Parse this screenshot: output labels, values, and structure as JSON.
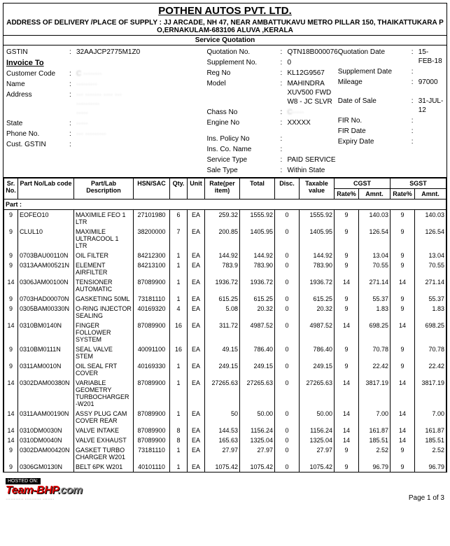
{
  "company": "POTHEN AUTOS PVT. LTD.",
  "delivery_address": "ADDRESS OF DELIVERY /PLACE OF SUPPLY  : JJ ARCADE, NH 47, NEAR AMBATTUKAVU METRO PILLAR 150, THAIKATTUKARA P O,ERNAKULAM-683106 ALUVA ,KERALA",
  "section_title": "Service Quotation",
  "left": {
    "gstin_label": "GSTIN",
    "gstin": "32AAJCP2775M1Z0",
    "invoice_to": "Invoice To",
    "cust_code_label": "Customer Code",
    "cust_code": "C ········",
    "name_label": "Name",
    "name": "·········",
    "address_label": "Address",
    "address": "··· ······· ···· ···\n··········\n·····",
    "state_label": "State",
    "state": "·····",
    "phone_label": "Phone No.",
    "phone": "··· ·········",
    "cust_gstin_label": "Cust. GSTIN"
  },
  "mid": {
    "quotation_no_label": "Quotation No.",
    "quotation_no": "QTN18B000076",
    "supp_no_label": "Supplement No.",
    "supp_no": "0",
    "reg_no_label": "Reg No",
    "reg_no": "KL12G9567",
    "model_label": "Model",
    "model": "MAHINDRA XUV500 FWD W8 - JC SLVR",
    "chass_no_label": "Chass No",
    "chass_no": "C·····",
    "engine_no_label": "Engine No",
    "engine_no": "XXXXX",
    "ins_policy_label": "Ins. Policy No",
    "ins_co_label": "Ins. Co. Name",
    "service_type_label": "Service Type",
    "service_type": "PAID SERVICE",
    "sale_type_label": "Sale Type",
    "sale_type": "Within State"
  },
  "right": {
    "quotation_date_label": "Quotation Date",
    "quotation_date": "15-FEB-18",
    "supp_date_label": "Supplement Date",
    "supp_date": "",
    "mileage_label": "Mileage",
    "mileage": "97000",
    "date_of_sale_label": "Date of Sale",
    "date_of_sale": "31-JUL-12",
    "fir_no_label": "FIR No.",
    "fir_date_label": "FIR Date",
    "expiry_date_label": "Expiry Date"
  },
  "columns": {
    "sr": "Sr. No.",
    "code": "Part No/Lab code",
    "desc": "Part/Lab Description",
    "hsn": "HSN/SAC",
    "qty": "Qty.",
    "unit": "Unit",
    "rate": "Rate(per item)",
    "total": "Total",
    "disc": "Disc.",
    "taxable": "Taxable value",
    "cgst": "CGST",
    "sgst": "SGST",
    "rate_pct": "Rate%",
    "amnt": "Amnt."
  },
  "part_label": "Part :",
  "rows": [
    {
      "sr": "9",
      "code": "EOFEO10",
      "desc": "MAXIMILE FEO 1 LTR",
      "hsn": "27101980",
      "qty": "6",
      "unit": "EA",
      "rate": "259.32",
      "total": "1555.92",
      "disc": "0",
      "taxable": "1555.92",
      "cr": "9",
      "ca": "140.03",
      "sa": "140.03"
    },
    {
      "sr": "9",
      "code": "CLUL10",
      "desc": "MAXIMILE ULTRACOOL  1 LTR",
      "hsn": "38200000",
      "qty": "7",
      "unit": "EA",
      "rate": "200.85",
      "total": "1405.95",
      "disc": "0",
      "taxable": "1405.95",
      "cr": "9",
      "ca": "126.54",
      "sa": "126.54"
    },
    {
      "sr": "9",
      "code": "0703BAU00110N",
      "desc": "OIL FILTER",
      "hsn": "84212300",
      "qty": "1",
      "unit": "EA",
      "rate": "144.92",
      "total": "144.92",
      "disc": "0",
      "taxable": "144.92",
      "cr": "9",
      "ca": "13.04",
      "sa": "13.04"
    },
    {
      "sr": "9",
      "code": "0313AAM00521N",
      "desc": "ELEMENT AIRFILTER",
      "hsn": "84213100",
      "qty": "1",
      "unit": "EA",
      "rate": "783.9",
      "total": "783.90",
      "disc": "0",
      "taxable": "783.90",
      "cr": "9",
      "ca": "70.55",
      "sa": "70.55"
    },
    {
      "sr": "14",
      "code": "0306JAM00100N",
      "desc": "TENSIONER AUTOMATIC",
      "hsn": "87089900",
      "qty": "1",
      "unit": "EA",
      "rate": "1936.72",
      "total": "1936.72",
      "disc": "0",
      "taxable": "1936.72",
      "cr": "14",
      "ca": "271.14",
      "sa": "271.14"
    },
    {
      "sr": "9",
      "code": "0703HAD00070N",
      "desc": "GASKETING 50ML",
      "hsn": "73181110",
      "qty": "1",
      "unit": "EA",
      "rate": "615.25",
      "total": "615.25",
      "disc": "0",
      "taxable": "615.25",
      "cr": "9",
      "ca": "55.37",
      "sa": "55.37"
    },
    {
      "sr": "9",
      "code": "0305BAM00330N",
      "desc": "O-RING INJECTOR SEALING",
      "hsn": "40169320",
      "qty": "4",
      "unit": "EA",
      "rate": "5.08",
      "total": "20.32",
      "disc": "0",
      "taxable": "20.32",
      "cr": "9",
      "ca": "1.83",
      "sa": "1.83"
    },
    {
      "sr": "14",
      "code": "0310BM0140N",
      "desc": "FINGER FOLLOWER SYSTEM",
      "hsn": "87089900",
      "qty": "16",
      "unit": "EA",
      "rate": "311.72",
      "total": "4987.52",
      "disc": "0",
      "taxable": "4987.52",
      "cr": "14",
      "ca": "698.25",
      "sa": "698.25"
    },
    {
      "sr": "9",
      "code": "0310BM0111N",
      "desc": "SEAL VALVE STEM",
      "hsn": "40091100",
      "qty": "16",
      "unit": "EA",
      "rate": "49.15",
      "total": "786.40",
      "disc": "0",
      "taxable": "786.40",
      "cr": "9",
      "ca": "70.78",
      "sa": "70.78"
    },
    {
      "sr": "9",
      "code": "0311AM0010N",
      "desc": "OIL SEAL FRT COVER",
      "hsn": "40169330",
      "qty": "1",
      "unit": "EA",
      "rate": "249.15",
      "total": "249.15",
      "disc": "0",
      "taxable": "249.15",
      "cr": "9",
      "ca": "22.42",
      "sa": "22.42"
    },
    {
      "sr": "14",
      "code": "0302DAM00380N",
      "desc": "VARIABLE GEOMETRY TURBOCHARGER -W201",
      "hsn": "87089900",
      "qty": "1",
      "unit": "EA",
      "rate": "27265.63",
      "total": "27265.63",
      "disc": "0",
      "taxable": "27265.63",
      "cr": "14",
      "ca": "3817.19",
      "sa": "3817.19"
    },
    {
      "sr": "14",
      "code": "0311AAM00190N",
      "desc": "ASSY PLUG CAM COVER REAR",
      "hsn": "87089900",
      "qty": "1",
      "unit": "EA",
      "rate": "50",
      "total": "50.00",
      "disc": "0",
      "taxable": "50.00",
      "cr": "14",
      "ca": "7.00",
      "sa": "7.00"
    },
    {
      "sr": "14",
      "code": "0310DM0030N",
      "desc": "VALVE INTAKE",
      "hsn": "87089900",
      "qty": "8",
      "unit": "EA",
      "rate": "144.53",
      "total": "1156.24",
      "disc": "0",
      "taxable": "1156.24",
      "cr": "14",
      "ca": "161.87",
      "sa": "161.87"
    },
    {
      "sr": "14",
      "code": "0310DM0040N",
      "desc": "VALVE EXHAUST",
      "hsn": "87089900",
      "qty": "8",
      "unit": "EA",
      "rate": "165.63",
      "total": "1325.04",
      "disc": "0",
      "taxable": "1325.04",
      "cr": "14",
      "ca": "185.51",
      "sa": "185.51"
    },
    {
      "sr": "9",
      "code": "0302DAM00420N",
      "desc": "GASKET TURBO CHARGER W201",
      "hsn": "73181110",
      "qty": "1",
      "unit": "EA",
      "rate": "27.97",
      "total": "27.97",
      "disc": "0",
      "taxable": "27.97",
      "cr": "9",
      "ca": "2.52",
      "sa": "2.52"
    },
    {
      "sr": "9",
      "code": "0306GM0130N",
      "desc": "BELT 6PK W201",
      "hsn": "40101110",
      "qty": "1",
      "unit": "EA",
      "rate": "1075.42",
      "total": "1075.42",
      "disc": "0",
      "taxable": "1075.42",
      "cr": "9",
      "ca": "96.79",
      "sa": "96.79"
    }
  ],
  "footer": {
    "hosted": "HOSTED ON:",
    "brand": "Team-BHP",
    "brand_suffix": ".com",
    "tagline": "··········· ·········· ·······",
    "page": "Page  1  of  3"
  }
}
